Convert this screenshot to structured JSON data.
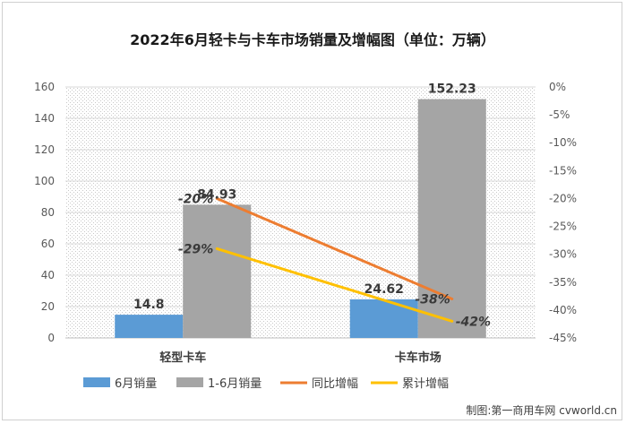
{
  "chart_data": {
    "type": "bar",
    "title": "2022年6月轻卡与卡车市场销量及增幅图（单位：万辆）",
    "categories": [
      "轻型卡车",
      "卡车市场"
    ],
    "y_left": {
      "ylim": [
        0,
        160
      ],
      "ticks": [
        "0",
        "20",
        "40",
        "60",
        "80",
        "100",
        "120",
        "140",
        "160"
      ]
    },
    "y_right": {
      "ylim": [
        -45,
        0
      ],
      "ticks": [
        "0%",
        "-5%",
        "-10%",
        "-15%",
        "-20%",
        "-25%",
        "-30%",
        "-35%",
        "-40%",
        "-45%"
      ]
    },
    "bar_series": [
      {
        "name": "6月销量",
        "color": "#5b9bd5",
        "values": [
          14.8,
          24.62
        ],
        "labels": [
          "14.8",
          "24.62"
        ]
      },
      {
        "name": "1-6月销量",
        "color": "#a5a5a5",
        "values": [
          84.93,
          152.23
        ],
        "labels": [
          "84.93",
          "152.23"
        ]
      }
    ],
    "line_series": [
      {
        "name": "同比增幅",
        "color": "#ed7d31",
        "values": [
          -20,
          -38
        ],
        "labels": [
          "-20%",
          "-38%"
        ]
      },
      {
        "name": "累计增幅",
        "color": "#ffc000",
        "values": [
          -29,
          -42
        ],
        "labels": [
          "-29%",
          "-42%"
        ]
      }
    ],
    "legend_position": "bottom",
    "grid": true,
    "credit": "制图:第一商用车网 cvworld.cn"
  }
}
